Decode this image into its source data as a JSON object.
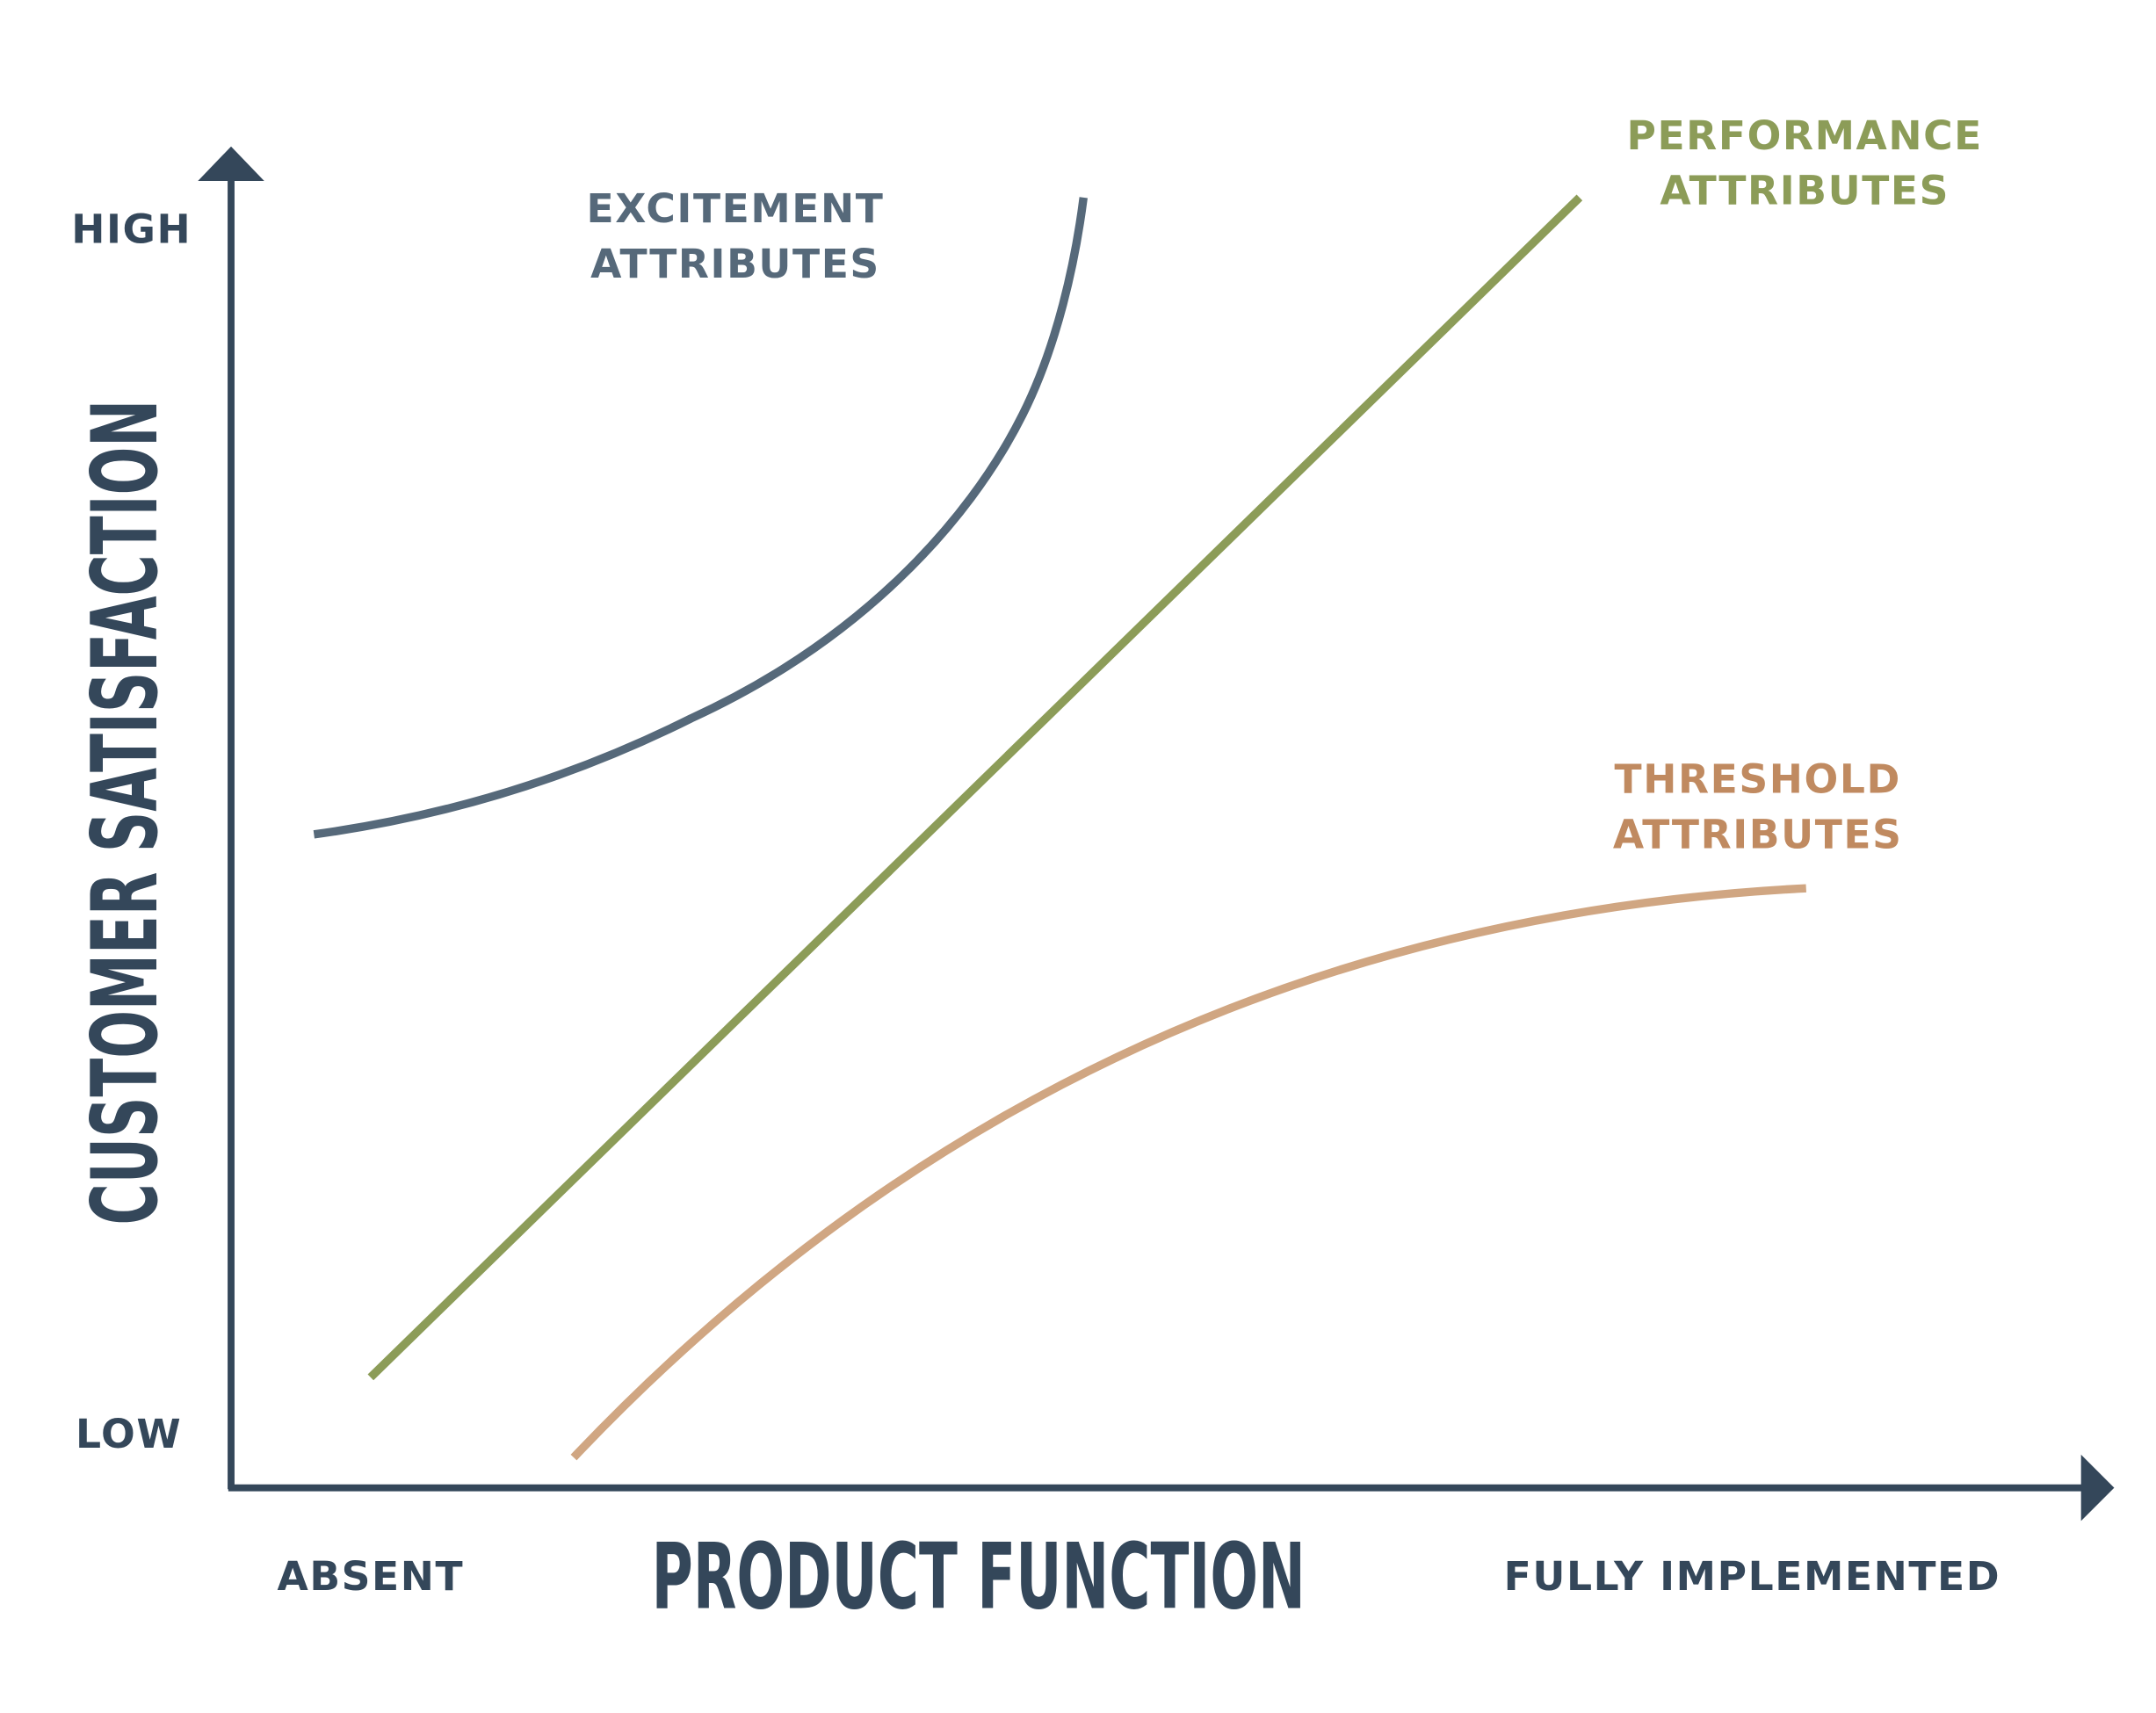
{
  "axes": {
    "y_title": "CUSTOMER SATISFACTION",
    "y_high": "HIGH",
    "y_low": "LOW",
    "x_title": "PRODUCT FUNCTION",
    "x_low": "ABSENT",
    "x_high": "FULLY IMPLEMENTED"
  },
  "curves": [
    {
      "label_lines": [
        "EXCITEMENT",
        "ATTRIBUTES"
      ]
    },
    {
      "label_lines": [
        "PERFORMANCE",
        "ATTRIBUTES"
      ]
    },
    {
      "label_lines": [
        "THRESHOLD",
        "ATTRIBUTES"
      ]
    }
  ]
}
